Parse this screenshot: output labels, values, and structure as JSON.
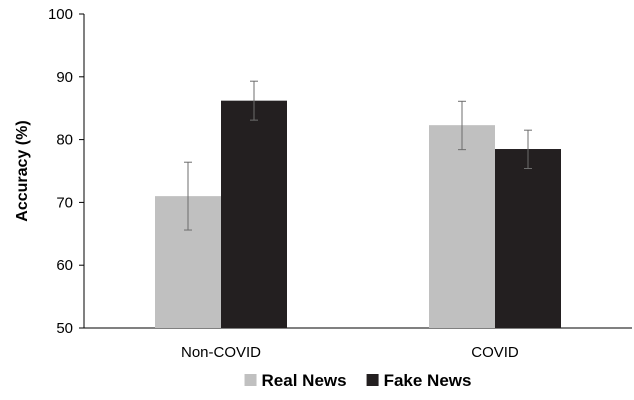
{
  "chart_data": {
    "type": "bar",
    "categories": [
      "Non-COVID",
      "COVID"
    ],
    "series": [
      {
        "name": "Real News",
        "color": "#c0c0c0",
        "values": [
          71.0,
          82.3
        ],
        "error_low": [
          65.6,
          78.4
        ],
        "error_high": [
          76.4,
          86.1
        ]
      },
      {
        "name": "Fake News",
        "color": "#231f20",
        "values": [
          86.2,
          78.5
        ],
        "error_low": [
          83.1,
          75.4
        ],
        "error_high": [
          89.3,
          81.5
        ]
      }
    ],
    "ylabel": "Accuracy (%)",
    "ylim": [
      50,
      100
    ],
    "yticks": [
      "50",
      "60",
      "70",
      "80",
      "90",
      "100"
    ],
    "grid": false,
    "legend": "bottom"
  }
}
